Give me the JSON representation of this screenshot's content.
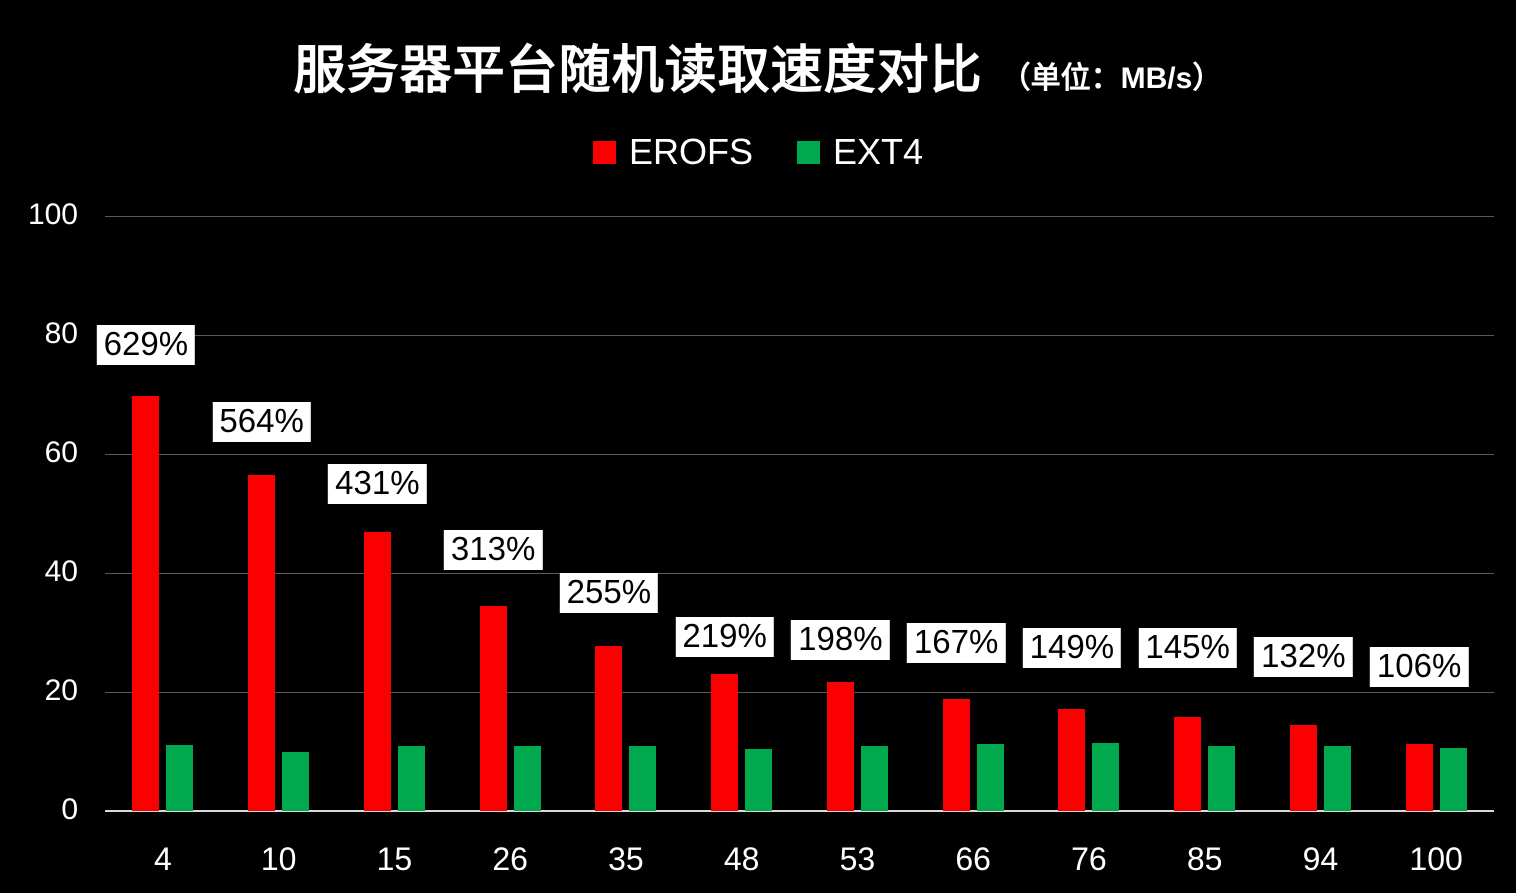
{
  "title": {
    "main": "服务器平台随机读取速度对比",
    "unit": "（单位：MB/s）"
  },
  "legend": [
    {
      "label": "EROFS",
      "color": "#fb0000"
    },
    {
      "label": "EXT4",
      "color": "#00a84e"
    }
  ],
  "colors": {
    "background": "#000000",
    "text": "#ffffff",
    "gridline": "#595959",
    "baseline": "#d9d9d9",
    "erofs": "#fb0000",
    "ext4": "#00a84e",
    "bar_label_bg": "#ffffff",
    "bar_label_text": "#000000"
  },
  "chart_data": {
    "type": "bar",
    "title": "服务器平台随机读取速度对比（单位：MB/s）",
    "xlabel": "",
    "ylabel": "",
    "ylim": [
      0,
      100
    ],
    "yticks": [
      0,
      20,
      40,
      60,
      80,
      100
    ],
    "grid": true,
    "legend_position": "top",
    "categories": [
      "4",
      "10",
      "15",
      "26",
      "35",
      "48",
      "53",
      "66",
      "76",
      "85",
      "94",
      "100"
    ],
    "series": [
      {
        "name": "EROFS",
        "color": "#fb0000",
        "values": [
          69.8,
          56.4,
          46.9,
          34.5,
          27.8,
          23.0,
          21.7,
          18.9,
          17.2,
          15.8,
          14.4,
          11.2
        ]
      },
      {
        "name": "EXT4",
        "color": "#00a84e",
        "values": [
          11.1,
          10.0,
          10.9,
          11.0,
          10.9,
          10.5,
          11.0,
          11.3,
          11.5,
          10.9,
          10.9,
          10.6
        ]
      }
    ],
    "bar_labels": [
      "629%",
      "564%",
      "431%",
      "313%",
      "255%",
      "219%",
      "198%",
      "167%",
      "149%",
      "145%",
      "132%",
      "106%"
    ]
  }
}
